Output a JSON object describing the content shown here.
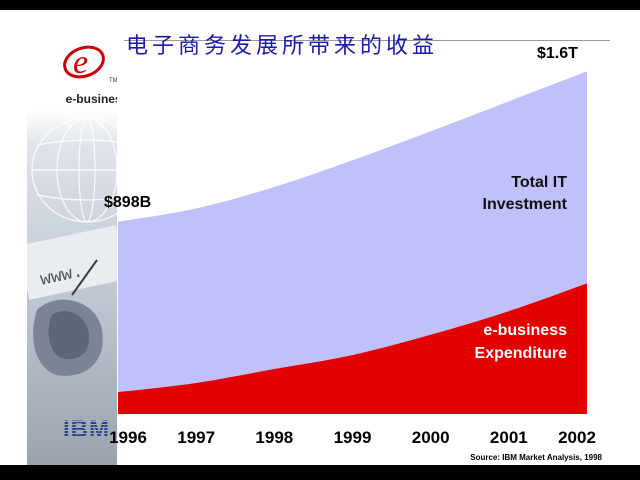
{
  "title": "电子商务发展所带来的收益",
  "logo": {
    "mark": "e",
    "tm": "TM",
    "text": "e-business",
    "company": "IBM"
  },
  "source": "Source: IBM Market Analysis, 1998",
  "colors": {
    "total_fill": "#c0c0fb",
    "ebiz_fill": "#e40000",
    "title_color": "#1a1ab0"
  },
  "chart_data": {
    "type": "area",
    "x": [
      "1996",
      "1997",
      "1998",
      "1999",
      "2000",
      "2001",
      "2002"
    ],
    "series": [
      {
        "name": "Total IT Investment",
        "label_lines": [
          "Total IT",
          "Investment"
        ],
        "values": [
          898,
          960,
          1060,
          1185,
          1320,
          1460,
          1600
        ],
        "color": "#c0c0fb"
      },
      {
        "name": "e-business Expenditure",
        "label_lines": [
          "e-business",
          "Expenditure"
        ],
        "values": [
          102,
          145,
          210,
          275,
          370,
          480,
          610
        ],
        "color": "#e40000"
      }
    ],
    "annotations": {
      "start": "$898B",
      "end": "$1.6T"
    },
    "ylim": [
      0,
      1700
    ],
    "grid": false,
    "legend": "inline"
  }
}
